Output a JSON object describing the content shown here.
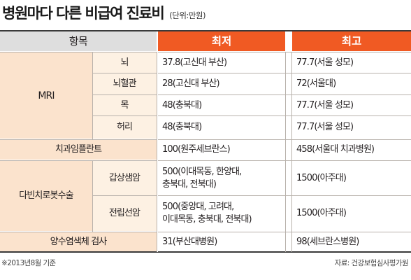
{
  "title": "병원마다 다른 비급여 진료비",
  "unit": "(단위:만원)",
  "headers": {
    "item": "항목",
    "min": "최저",
    "max": "최고"
  },
  "rows": {
    "mri_label": "MRI",
    "brain": {
      "sub": "뇌",
      "min": "37.8(고신대 부산)",
      "max": "77.7(서울 성모)"
    },
    "brain_vessel": {
      "sub": "뇌혈관",
      "min": "28(고신대 부산)",
      "max": "72(서울대)"
    },
    "neck": {
      "sub": "목",
      "min": "48(충북대)",
      "max": "77.7(서울 성모)"
    },
    "waist": {
      "sub": "허리",
      "min": "48(충북대)",
      "max": "77.7(서울 성모)"
    },
    "implant": {
      "label": "치과임플란트",
      "min": "100(원주세브란스)",
      "max": "458(서울대 치과병원)"
    },
    "davinci_label": "다빈치로봇수술",
    "thyroid": {
      "sub": "갑상샘암",
      "min_line1": "500(이대목동, 한양대,",
      "min_line2": "충북대, 전북대)",
      "max": "1500(아주대)"
    },
    "prostate": {
      "sub": "전립선암",
      "min_line1": "500(중앙대, 고려대,",
      "min_line2": "이대목동, 충북대, 전북대)",
      "max": "1500(아주대)"
    },
    "pet": {
      "label": "양수염색체 검사",
      "min": "31(부산대병원)",
      "max": "98(세브란스병원)"
    }
  },
  "footer": {
    "note": "※2013년8월 기준",
    "source": "자료: 건강보험심사평가원"
  },
  "colors": {
    "header_orange": "#f05a23",
    "peach": "#fbe3cd",
    "cream": "#fdf1e3",
    "header_grey": "#dedede"
  }
}
